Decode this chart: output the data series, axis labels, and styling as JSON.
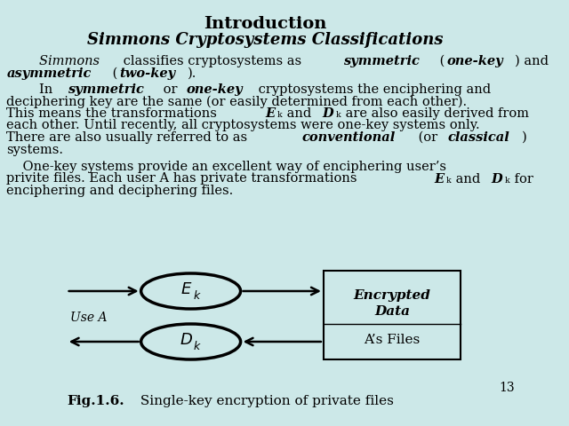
{
  "bg_color": "#cce8e8",
  "title": "Introduction",
  "subtitle": "Simmons Cryptosystems Classifications",
  "page_number": "13",
  "para1_parts": [
    {
      "text": "        Simmons",
      "style": "italic"
    },
    {
      "text": " classifies cryptosystems as ",
      "style": "normal"
    },
    {
      "text": "symmetric",
      "style": "bolditalic"
    },
    {
      "text": " (",
      "style": "normal"
    },
    {
      "text": "one-key",
      "style": "bolditalic"
    },
    {
      "text": ") and\n",
      "style": "normal"
    },
    {
      "text": "asymmetric",
      "style": "bolditalic"
    },
    {
      "text": " (",
      "style": "normal"
    },
    {
      "text": "two-key",
      "style": "bolditalic"
    },
    {
      "text": ").",
      "style": "normal"
    }
  ],
  "para2": "        In symmetric or one-key cryptosystems the enciphering and\ndeciphering key are the same (or easily determined from each other).\nThis means the transformations Eₖ and Dₖ are also easily derived from\neach other. Until recently, all cryptosystems were one-key systems only.\nThere are also usually referred to as conventional (or classical)\nsystems.",
  "para3": "    One-key systems provide an excellent way of enciphering user’s\nprivite files. Each user A has private transformations Eₖ and Dₖ for\nenciphering and deciphering files.",
  "fig_caption_bold": "Fig.1.6.",
  "fig_caption_normal": " Single-key encryption of private files",
  "diagram": {
    "ellipse_E_label": "E",
    "ellipse_E_sub": "k",
    "ellipse_D_label": "D",
    "ellipse_D_sub": "k",
    "box_line1": "Encrypted",
    "box_line2": "Data",
    "box_line3": "A’s Files",
    "use_a_label": "Use A"
  }
}
